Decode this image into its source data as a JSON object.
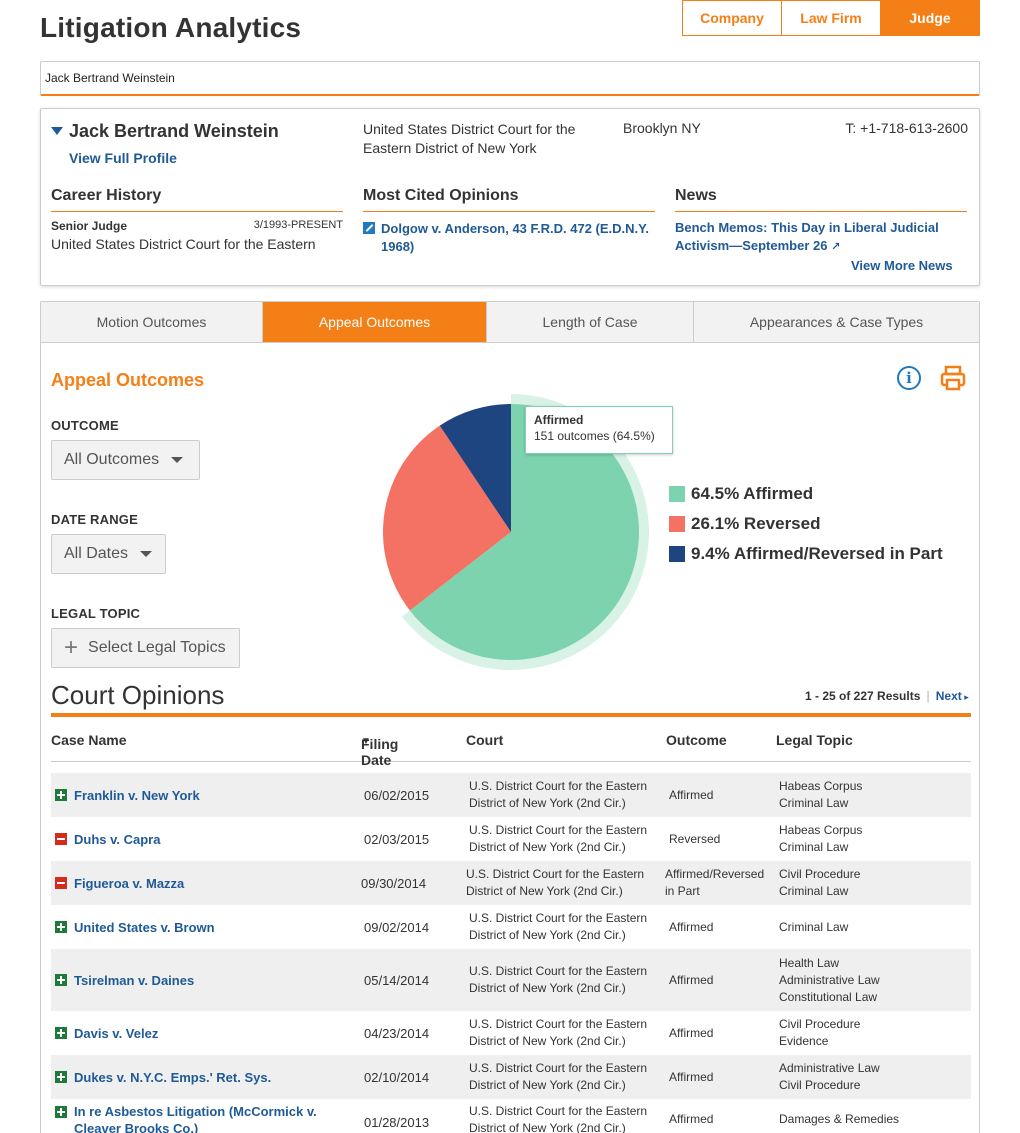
{
  "header": {
    "title": "Litigation Analytics",
    "entity_tabs": [
      "Company",
      "Law Firm",
      "Judge"
    ],
    "active_entity_tab": "Judge",
    "search_value": "Jack Bertrand Weinstein"
  },
  "profile": {
    "name": "Jack Bertrand Weinstein",
    "view_profile_label": "View Full Profile",
    "court": "United States District Court for the Eastern District of New York",
    "location": "Brooklyn NY",
    "phone": "T: +1-718-613-2600",
    "career": {
      "heading": "Career History",
      "title": "Senior Judge",
      "dates": "3/1993-PRESENT",
      "court": "United States District Court for the Eastern"
    },
    "cited": {
      "heading": "Most Cited Opinions",
      "item": "Dolgow v. Anderson, 43 F.R.D. 472 (E.D.N.Y. 1968)"
    },
    "news": {
      "heading": "News",
      "item": "Bench Memos: This Day in Liberal Judicial Activism—September 26",
      "more_label": "View More News"
    }
  },
  "analytics": {
    "tabs": [
      "Motion Outcomes",
      "Appeal Outcomes",
      "Length of Case",
      "Appearances & Case Types"
    ],
    "active_tab": "Appeal Outcomes",
    "title": "Appeal Outcomes",
    "filters": {
      "outcome_label": "OUTCOME",
      "outcome_value": "All Outcomes",
      "date_label": "DATE RANGE",
      "date_value": "All Dates",
      "topic_label": "LEGAL TOPIC",
      "topic_value": "Select Legal Topics"
    },
    "tooltip": {
      "title": "Affirmed",
      "value": "151 outcomes (64.5%)"
    },
    "legend": [
      "64.5% Affirmed",
      "26.1% Reversed",
      "9.4% Affirmed/Reversed in Part"
    ]
  },
  "chart_data": {
    "type": "pie",
    "title": "Appeal Outcomes",
    "categories": [
      "Affirmed",
      "Reversed",
      "Affirmed/Reversed in Part"
    ],
    "values": [
      64.5,
      26.1,
      9.4
    ],
    "highlighted": "Affirmed",
    "colors": [
      "#7dd3ad",
      "#f47263",
      "#1f4580"
    ]
  },
  "opinions": {
    "title": "Court Opinions",
    "results": "1 - 25 of 227 Results",
    "next_label": "Next",
    "columns": {
      "case": "Case Name",
      "date": "Filing Date",
      "court": "Court",
      "outcome": "Outcome",
      "topic": "Legal Topic"
    },
    "rows": [
      {
        "sign": "plus",
        "case": "Franklin v. New York",
        "date": "06/02/2015",
        "court": "U.S. District Court for the Eastern District of New York (2nd Cir.)",
        "outcome": "Affirmed",
        "topics": [
          "Habeas Corpus",
          "Criminal Law"
        ]
      },
      {
        "sign": "minus",
        "case": "Duhs v. Capra",
        "date": "02/03/2015",
        "court": "U.S. District Court for the Eastern District of New York (2nd Cir.)",
        "outcome": "Reversed",
        "topics": [
          "Habeas Corpus",
          "Criminal Law"
        ]
      },
      {
        "sign": "minus",
        "case": "Figueroa v. Mazza",
        "date": "09/30/2014",
        "court": "U.S. District Court for the Eastern District of New York (2nd Cir.)",
        "outcome": "Affirmed/Reversed in Part",
        "topics": [
          "Civil Procedure",
          "Criminal Law"
        ]
      },
      {
        "sign": "plus",
        "case": "United States v. Brown",
        "date": "09/02/2014",
        "court": "U.S. District Court for the Eastern District of New York (2nd Cir.)",
        "outcome": "Affirmed",
        "topics": [
          "Criminal Law"
        ]
      },
      {
        "sign": "plus",
        "case": "Tsirelman v. Daines",
        "date": "05/14/2014",
        "court": "U.S. District Court for the Eastern District of New York (2nd Cir.)",
        "outcome": "Affirmed",
        "topics": [
          "Health Law",
          "Administrative Law",
          "Constitutional Law"
        ]
      },
      {
        "sign": "plus",
        "case": "Davis v. Velez",
        "date": "04/23/2014",
        "court": "U.S. District Court for the Eastern District of New York (2nd Cir.)",
        "outcome": "Affirmed",
        "topics": [
          "Civil Procedure",
          "Evidence"
        ]
      },
      {
        "sign": "plus",
        "case": "Dukes v. N.Y.C. Emps.' Ret. Sys.",
        "date": "02/10/2014",
        "court": "U.S. District Court for the Eastern District of New York (2nd Cir.)",
        "outcome": "Affirmed",
        "topics": [
          "Administrative Law",
          "Civil Procedure"
        ]
      },
      {
        "sign": "plus",
        "case": "In re Asbestos Litigation (McCormick v. Cleaver Brooks Co.)",
        "date": "01/28/2013",
        "court": "U.S. District Court for the Eastern District of New York (2nd Cir.)",
        "outcome": "Affirmed",
        "topics": [
          "Damages & Remedies"
        ]
      }
    ]
  }
}
